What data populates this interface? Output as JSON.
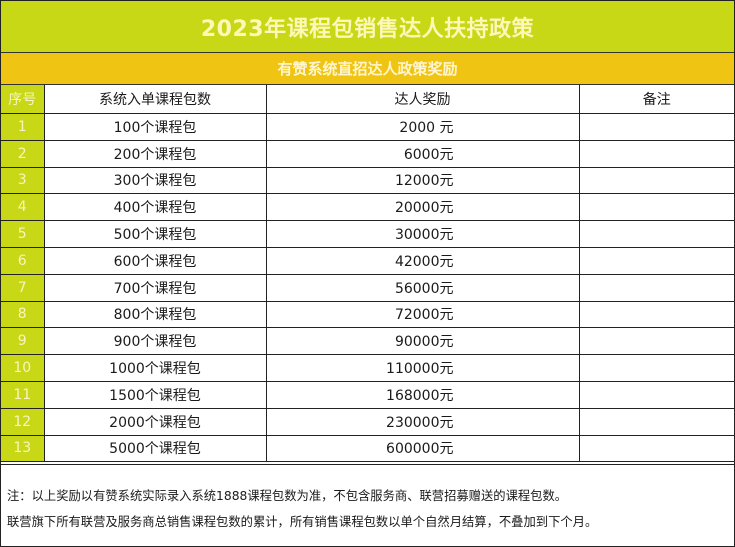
{
  "title": "2023年课程包销售达人扶持政策",
  "subtitle": "有赞系统直招达人政策奖励",
  "table": {
    "headers": [
      "序号",
      "系统入单课程包数",
      "达人奖励",
      "备注"
    ],
    "rows": [
      {
        "no": "1",
        "packages": "100个课程包",
        "reward": "2000 元",
        "remark": ""
      },
      {
        "no": "2",
        "packages": "200个课程包",
        "reward": "6000元",
        "remark": ""
      },
      {
        "no": "3",
        "packages": "300个课程包",
        "reward": "12000元",
        "remark": ""
      },
      {
        "no": "4",
        "packages": "400个课程包",
        "reward": "20000元",
        "remark": ""
      },
      {
        "no": "5",
        "packages": "500个课程包",
        "reward": "30000元",
        "remark": ""
      },
      {
        "no": "6",
        "packages": "600个课程包",
        "reward": "42000元",
        "remark": ""
      },
      {
        "no": "7",
        "packages": "700个课程包",
        "reward": "56000元",
        "remark": ""
      },
      {
        "no": "8",
        "packages": "800个课程包",
        "reward": "72000元",
        "remark": ""
      },
      {
        "no": "9",
        "packages": "900个课程包",
        "reward": "90000元",
        "remark": ""
      },
      {
        "no": "10",
        "packages": "1000个课程包",
        "reward": "110000元",
        "remark": ""
      },
      {
        "no": "11",
        "packages": "1500个课程包",
        "reward": "168000元",
        "remark": ""
      },
      {
        "no": "12",
        "packages": "2000个课程包",
        "reward": "230000元",
        "remark": ""
      },
      {
        "no": "13",
        "packages": "5000个课程包",
        "reward": "600000元",
        "remark": ""
      }
    ]
  },
  "notes": [
    "注：以上奖励以有赞系统实际录入系统1888课程包数为准，不包含服务商、联营招募赠送的课程包数。",
    "联营旗下所有联营及服务商总销售课程包数的累计，所有销售课程包数以单个自然月结算，不叠加到下个月。"
  ],
  "colors": {
    "title_bg": "#c8d816",
    "subtitle_bg": "#f0c412",
    "index_bg": "#c8d816"
  }
}
